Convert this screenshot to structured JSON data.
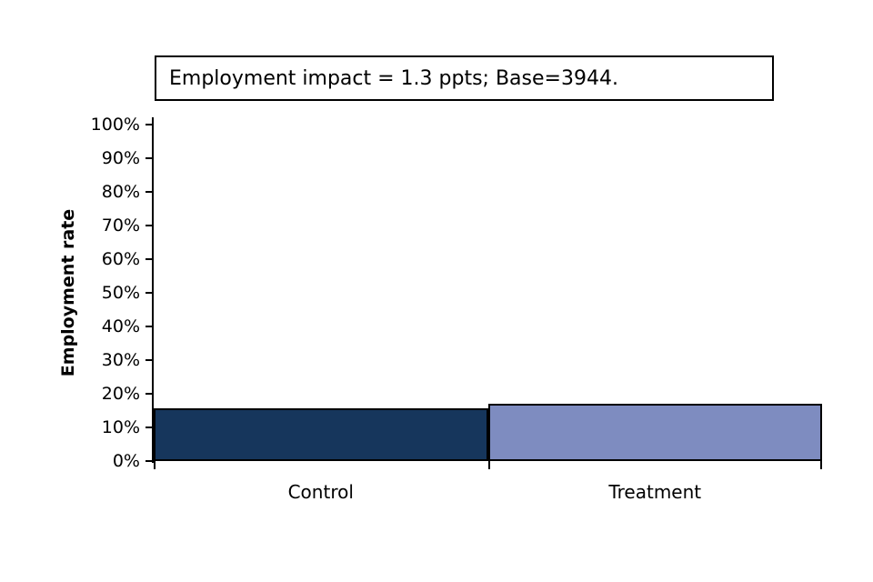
{
  "title_box": {
    "text": "Employment impact = 1.3 ppts; Base=3944."
  },
  "chart_data": {
    "type": "bar",
    "title": "Employment impact = 1.3 ppts; Base=3944.",
    "categories": [
      "Control",
      "Treatment"
    ],
    "values": [
      15.7,
      17.0
    ],
    "xlabel": "",
    "ylabel": "Employment rate",
    "ylim": [
      0,
      100
    ],
    "ytick_step": 10,
    "ytick_labels": [
      "0%",
      "10%",
      "20%",
      "30%",
      "40%",
      "50%",
      "60%",
      "70%",
      "80%",
      "90%",
      "100%"
    ],
    "bar_colors": [
      "#16365C",
      "#7E8CC0"
    ],
    "bar_border_color": "#000000",
    "grid": false,
    "legend": false
  }
}
